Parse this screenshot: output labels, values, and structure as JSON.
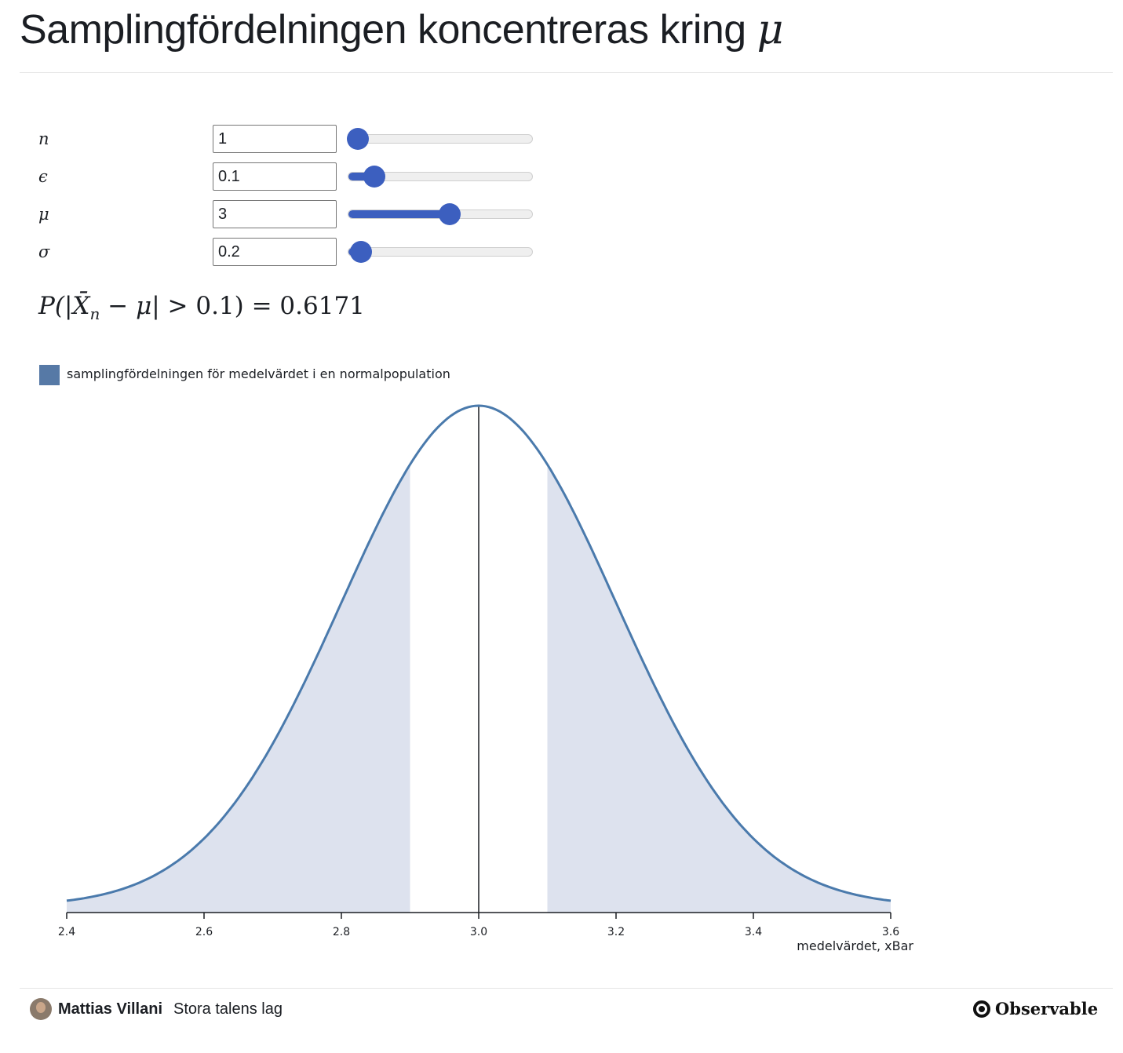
{
  "page": {
    "title": "Samplingfördelningen koncentreras kring",
    "title_symbol": "μ"
  },
  "controls": [
    {
      "label": "n",
      "value": "1",
      "min": 1,
      "max": 100,
      "current": 1
    },
    {
      "label": "ϵ",
      "value": "0.1",
      "min": 0,
      "max": 1,
      "current": 0.1
    },
    {
      "label": "μ",
      "value": "3",
      "min": -2,
      "max": 7,
      "current": 3
    },
    {
      "label": "σ",
      "value": "0.2",
      "min": 0.1,
      "max": 5,
      "current": 0.2
    }
  ],
  "formula": {
    "prefix": "P(|",
    "xbar": "X̄",
    "sub": "n",
    "mid": " − ",
    "mu": "μ",
    "suffix": "| > 0.1) = 0.6171"
  },
  "legend": {
    "label": "samplingfördelningen för medelvärdet i en normalpopulation",
    "color": "#5679a6"
  },
  "chart_data": {
    "type": "line",
    "title": "",
    "xlabel": "medelvärdet, xBar",
    "ylabel": "",
    "xlim": [
      2.4,
      3.6
    ],
    "xticks": [
      "2.4",
      "2.6",
      "2.8",
      "3.0",
      "3.2",
      "3.4",
      "3.6"
    ],
    "series": [
      {
        "name": "samplingfördelningen för medelvärdet i en normalpopulation",
        "distribution": "normal",
        "mean": 3.0,
        "sd": 0.2,
        "color": "#4a7aac"
      }
    ],
    "shaded_tails": {
      "lower_upto": 2.9,
      "upper_from": 3.1,
      "color": "#dde2ee"
    },
    "center_line": 3.0,
    "grid": false
  },
  "footer": {
    "author": "Mattias Villani",
    "notebook": "Stora talens lag",
    "brand": "Observable"
  }
}
